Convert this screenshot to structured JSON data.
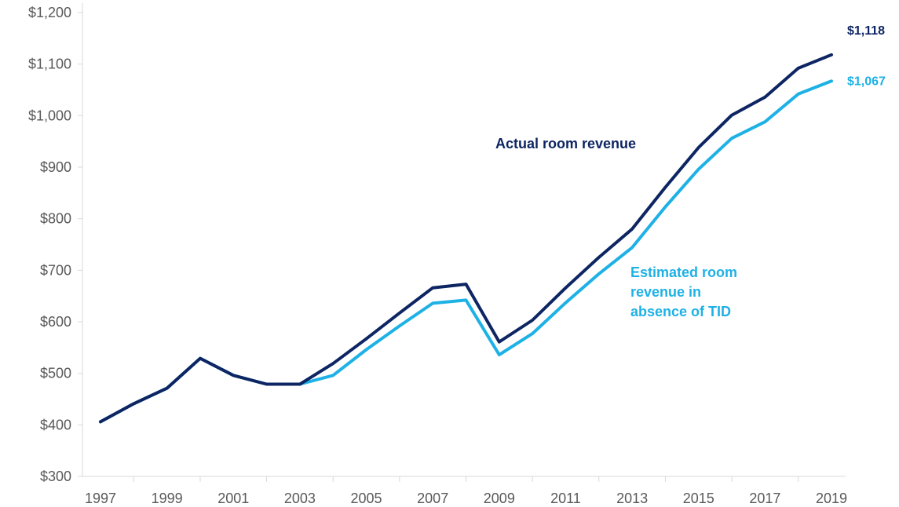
{
  "chart_data": {
    "type": "line",
    "x": [
      "1997",
      "1998",
      "1999",
      "2000",
      "2001",
      "2002",
      "2003",
      "2004",
      "2005",
      "2006",
      "2007",
      "2008",
      "2009",
      "2010",
      "2011",
      "2012",
      "2013",
      "2014",
      "2015",
      "2016",
      "2017",
      "2018",
      "2019"
    ],
    "xticks": [
      "1997",
      "1999",
      "2001",
      "2003",
      "2005",
      "2007",
      "2009",
      "2011",
      "2013",
      "2015",
      "2017",
      "2019"
    ],
    "yticks": [
      "$300",
      "$400",
      "$500",
      "$600",
      "$700",
      "$800",
      "$900",
      "$1,000",
      "$1,100",
      "$1,200"
    ],
    "ylim": [
      300,
      1200
    ],
    "series": [
      {
        "name": "Actual room revenue",
        "color": "#0d2563",
        "end_label": "$1,118",
        "values": [
          406,
          441,
          471,
          529,
          496,
          479,
          479,
          519,
          567,
          617,
          666,
          673,
          561,
          603,
          666,
          725,
          780,
          861,
          938,
          1001,
          1036,
          1092,
          1118
        ]
      },
      {
        "name_lines": [
          "Estimated room",
          "revenue  in",
          "absence of TID"
        ],
        "color": "#1eb1e6",
        "end_label": "$1,067",
        "values": [
          406,
          441,
          471,
          529,
          496,
          479,
          479,
          496,
          546,
          592,
          636,
          642,
          536,
          577,
          637,
          693,
          744,
          823,
          896,
          956,
          988,
          1042,
          1067
        ]
      }
    ],
    "grid": false,
    "legend": "inline annotations"
  }
}
